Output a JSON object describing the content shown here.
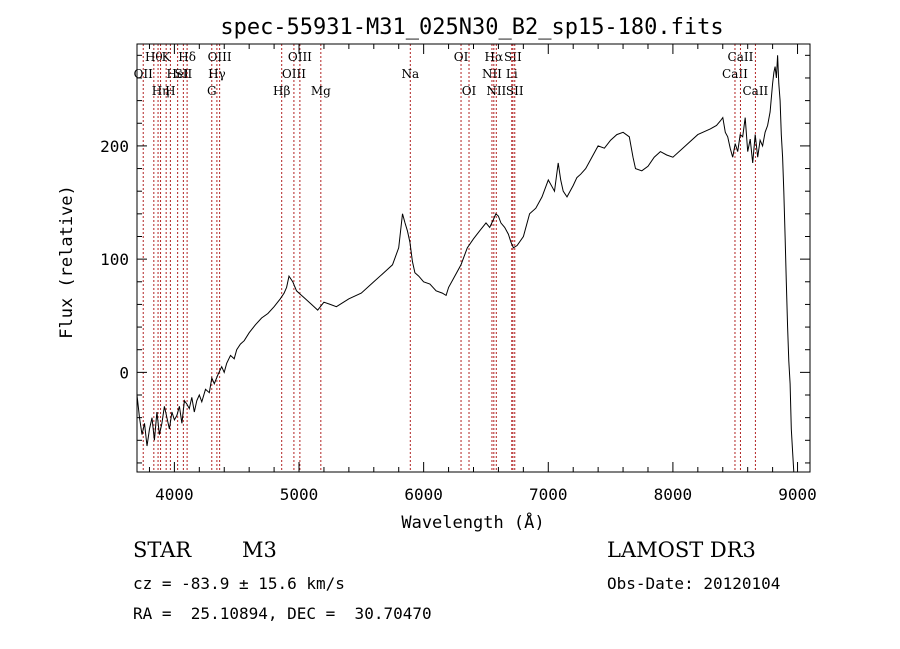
{
  "chart_data": {
    "type": "line",
    "title": "spec-55931-M31_025N30_B2_sp15-180.fits",
    "xlabel": "Wavelength (Å)",
    "ylabel": "Flux (relative)",
    "xlim": [
      3700,
      9100
    ],
    "ylim": [
      -88,
      290
    ],
    "xticks": [
      4000,
      5000,
      6000,
      7000,
      8000,
      9000
    ],
    "yticks": [
      0,
      100,
      200
    ],
    "series": [
      {
        "name": "flux",
        "x": [
          3700,
          3720,
          3740,
          3760,
          3780,
          3800,
          3820,
          3840,
          3860,
          3880,
          3900,
          3920,
          3940,
          3960,
          3980,
          4000,
          4020,
          4040,
          4060,
          4080,
          4100,
          4120,
          4140,
          4160,
          4180,
          4200,
          4220,
          4250,
          4280,
          4300,
          4320,
          4350,
          4380,
          4400,
          4420,
          4450,
          4480,
          4500,
          4530,
          4560,
          4600,
          4650,
          4700,
          4750,
          4800,
          4850,
          4880,
          4900,
          4920,
          4950,
          4980,
          5000,
          5050,
          5100,
          5150,
          5200,
          5250,
          5300,
          5400,
          5500,
          5600,
          5700,
          5750,
          5800,
          5830,
          5850,
          5870,
          5890,
          5910,
          5930,
          5960,
          6000,
          6050,
          6100,
          6150,
          6180,
          6200,
          6250,
          6300,
          6350,
          6400,
          6450,
          6500,
          6530,
          6560,
          6580,
          6600,
          6620,
          6650,
          6680,
          6700,
          6720,
          6750,
          6800,
          6850,
          6900,
          6950,
          7000,
          7050,
          7080,
          7100,
          7120,
          7150,
          7200,
          7230,
          7260,
          7300,
          7350,
          7400,
          7450,
          7500,
          7550,
          7600,
          7650,
          7680,
          7700,
          7750,
          7800,
          7850,
          7900,
          7950,
          8000,
          8100,
          8200,
          8300,
          8350,
          8380,
          8400,
          8420,
          8440,
          8460,
          8480,
          8500,
          8520,
          8540,
          8560,
          8580,
          8600,
          8620,
          8640,
          8660,
          8680,
          8700,
          8720,
          8740,
          8760,
          8780,
          8800,
          8810,
          8820,
          8830,
          8840,
          8850,
          8860,
          8870,
          8880,
          8890,
          8900,
          8910,
          8920,
          8930,
          8940,
          8950,
          8960,
          8970
        ],
        "y": [
          -20,
          -40,
          -55,
          -45,
          -65,
          -50,
          -40,
          -60,
          -35,
          -55,
          -45,
          -30,
          -40,
          -50,
          -35,
          -42,
          -38,
          -30,
          -45,
          -25,
          -28,
          -32,
          -22,
          -35,
          -25,
          -20,
          -26,
          -15,
          -18,
          -5,
          -10,
          -2,
          5,
          0,
          8,
          15,
          12,
          20,
          25,
          28,
          35,
          42,
          48,
          52,
          58,
          65,
          70,
          75,
          85,
          80,
          72,
          70,
          65,
          60,
          55,
          62,
          60,
          58,
          65,
          70,
          80,
          90,
          95,
          110,
          140,
          132,
          125,
          115,
          98,
          88,
          85,
          80,
          78,
          72,
          70,
          68,
          75,
          85,
          95,
          110,
          118,
          125,
          132,
          128,
          135,
          140,
          138,
          132,
          128,
          122,
          115,
          110,
          112,
          120,
          140,
          145,
          155,
          170,
          160,
          185,
          170,
          160,
          155,
          165,
          172,
          175,
          180,
          190,
          200,
          198,
          205,
          210,
          212,
          208,
          190,
          180,
          178,
          182,
          190,
          195,
          192,
          190,
          200,
          210,
          215,
          218,
          222,
          225,
          212,
          208,
          198,
          190,
          202,
          195,
          210,
          208,
          225,
          195,
          206,
          185,
          210,
          190,
          205,
          200,
          212,
          218,
          230,
          255,
          265,
          270,
          260,
          280,
          255,
          240,
          210,
          190,
          160,
          120,
          80,
          40,
          10,
          -10,
          -50,
          -70,
          -90
        ]
      }
    ],
    "lines": [
      {
        "x": 3750,
        "label": "OII",
        "row": 1
      },
      {
        "x": 3835,
        "label": "Hθ",
        "row": 0
      },
      {
        "x": 3869,
        "label": "",
        "row": 1
      },
      {
        "x": 3889,
        "label": "Hη",
        "row": 2
      },
      {
        "x": 3934,
        "label": "K",
        "row": 0
      },
      {
        "x": 3968,
        "label": "H",
        "row": 2
      },
      {
        "x": 4026,
        "label": "HeI",
        "row": 1
      },
      {
        "x": 4072,
        "label": "SII",
        "row": 1
      },
      {
        "x": 4102,
        "label": "Hδ",
        "row": 0
      },
      {
        "x": 4300,
        "label": "G",
        "row": 2
      },
      {
        "x": 4341,
        "label": "Hγ",
        "row": 1
      },
      {
        "x": 4363,
        "label": "OIII",
        "row": 0
      },
      {
        "x": 4861,
        "label": "Hβ",
        "row": 2
      },
      {
        "x": 4959,
        "label": "OIII",
        "row": 1
      },
      {
        "x": 5007,
        "label": "OIII",
        "row": 0
      },
      {
        "x": 5175,
        "label": "Mg",
        "row": 2
      },
      {
        "x": 5893,
        "label": "Na",
        "row": 1
      },
      {
        "x": 6300,
        "label": "OI",
        "row": 0
      },
      {
        "x": 6364,
        "label": "OI",
        "row": 2
      },
      {
        "x": 6548,
        "label": "NII",
        "row": 1
      },
      {
        "x": 6563,
        "label": "Hα",
        "row": 0
      },
      {
        "x": 6583,
        "label": "NII",
        "row": 2
      },
      {
        "x": 6707,
        "label": "Li",
        "row": 1
      },
      {
        "x": 6716,
        "label": "SII",
        "row": 0
      },
      {
        "x": 6731,
        "label": "SII",
        "row": 2
      },
      {
        "x": 8498,
        "label": "CaII",
        "row": 1
      },
      {
        "x": 8542,
        "label": "CaII",
        "row": 0
      },
      {
        "x": 8662,
        "label": "CaII",
        "row": 2
      }
    ],
    "line_color": "#b22222"
  },
  "info": {
    "class": "STAR",
    "subclass": "M3",
    "survey": "LAMOST DR3",
    "cz": "cz = -83.9 ± 15.6 km/s",
    "obsdate": "Obs-Date: 20120104",
    "radec": "RA =  25.10894, DEC =  30.70470"
  }
}
